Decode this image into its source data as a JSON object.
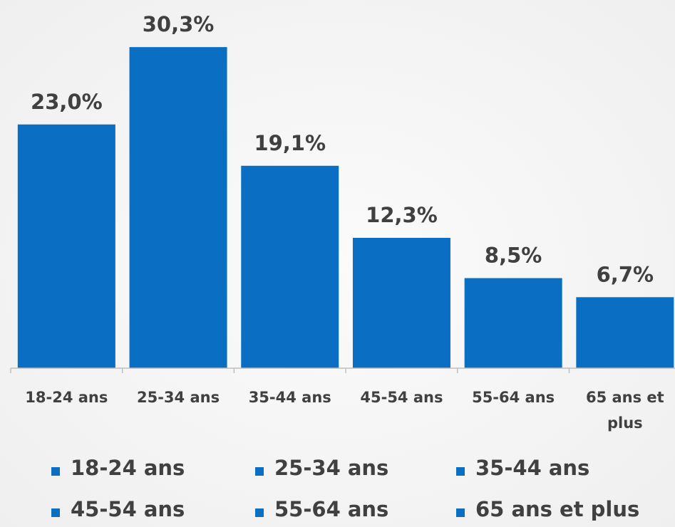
{
  "chart_data": {
    "type": "bar",
    "categories": [
      "18-24 ans",
      "25-34 ans",
      "35-44 ans",
      "45-54 ans",
      "55-64 ans",
      "65 ans et plus"
    ],
    "values": [
      23.0,
      30.3,
      19.1,
      12.3,
      8.5,
      6.7
    ],
    "value_labels": [
      "23,0%",
      "30,3%",
      "19,1%",
      "12,3%",
      "8,5%",
      "6,7%"
    ],
    "color": "#0a6fc2",
    "grid": false
  }
}
